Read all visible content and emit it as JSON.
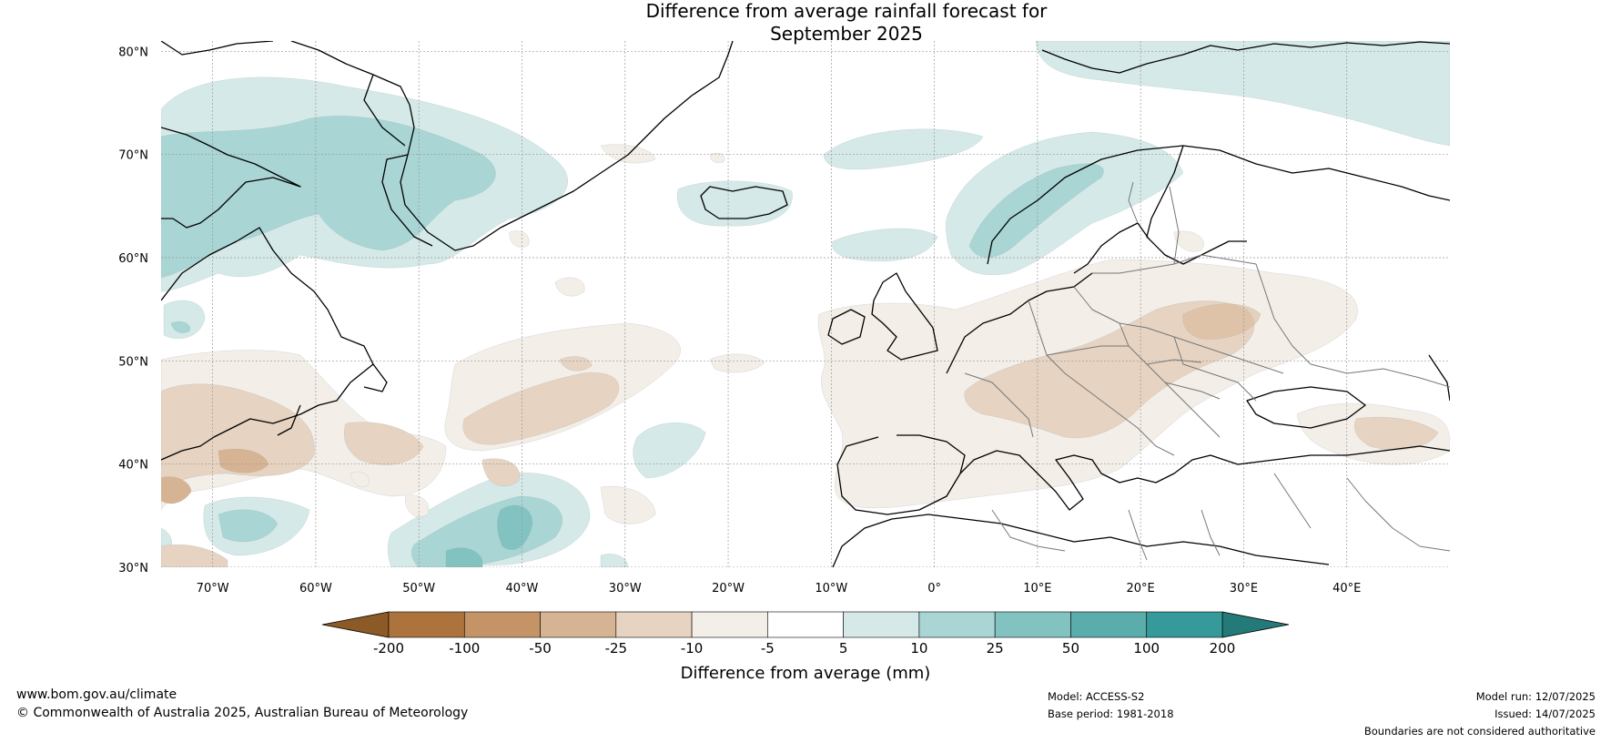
{
  "title": {
    "line1": "Difference from average rainfall forecast for",
    "line2": "September 2025"
  },
  "map": {
    "lon_range": [
      -75,
      50
    ],
    "lat_range": [
      30,
      81
    ],
    "lat_ticks": [
      {
        "value": 80,
        "label": "80°N"
      },
      {
        "value": 70,
        "label": "70°N"
      },
      {
        "value": 60,
        "label": "60°N"
      },
      {
        "value": 50,
        "label": "50°N"
      },
      {
        "value": 40,
        "label": "40°N"
      },
      {
        "value": 30,
        "label": "30°N"
      }
    ],
    "lon_ticks": [
      {
        "value": -70,
        "label": "70°W"
      },
      {
        "value": -60,
        "label": "60°W"
      },
      {
        "value": -50,
        "label": "50°W"
      },
      {
        "value": -40,
        "label": "40°W"
      },
      {
        "value": -30,
        "label": "30°W"
      },
      {
        "value": -20,
        "label": "20°W"
      },
      {
        "value": -10,
        "label": "10°W"
      },
      {
        "value": 0,
        "label": "0°"
      },
      {
        "value": 10,
        "label": "10°E"
      },
      {
        "value": 20,
        "label": "20°E"
      },
      {
        "value": 30,
        "label": "30°E"
      },
      {
        "value": 40,
        "label": "40°E"
      }
    ]
  },
  "colorbar": {
    "label": "Difference from average (mm)",
    "under_color": "#8c5a26",
    "over_color": "#237a78",
    "colors": [
      "#ad733d",
      "#c49467",
      "#d6b392",
      "#e6d3c1",
      "#f3eee8",
      "#ffffff",
      "#d5e9e8",
      "#a9d5d4",
      "#82c2c0",
      "#5aadaa",
      "#36999a"
    ],
    "tick_labels": [
      "-200",
      "-100",
      "-50",
      "-25",
      "-10",
      "-5",
      "5",
      "10",
      "25",
      "50",
      "100",
      "200"
    ]
  },
  "footer": {
    "website": "www.bom.gov.au/climate",
    "copyright": "© Commonwealth of Australia 2025, Australian Bureau of Meteorology",
    "model": "Model: ACCESS-S2",
    "base_period": "Base period: 1981-2018",
    "model_run": "Model run: 12/07/2025",
    "issued": "Issued: 14/07/2025",
    "disclaimer": "Boundaries are not considered authoritative"
  }
}
